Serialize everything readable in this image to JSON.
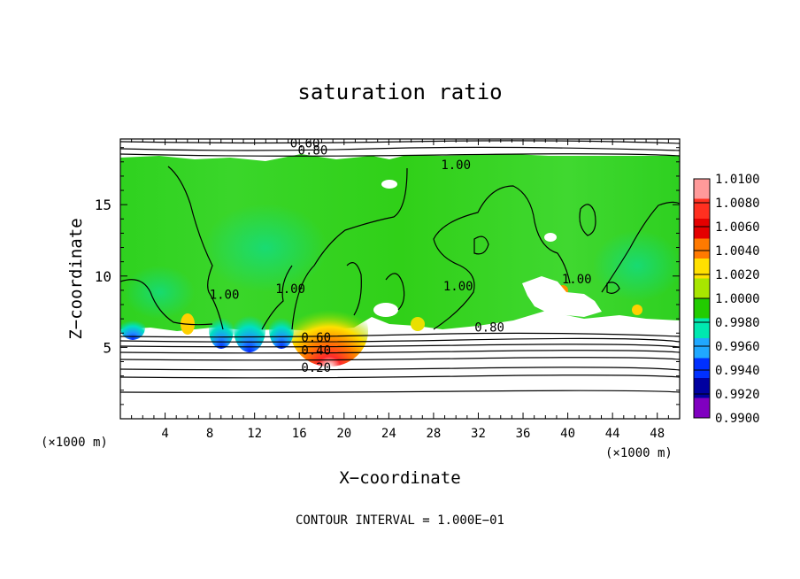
{
  "chart_data": {
    "type": "heatmap",
    "title": "saturation ratio",
    "xlabel": "X−coordinate",
    "ylabel": "Z−coordinate",
    "x_unit_left": "(×1000 m)",
    "x_unit_right": "(×1000 m)",
    "xlim": [
      0,
      50
    ],
    "ylim": [
      0,
      19.6
    ],
    "x_ticks": [
      4,
      8,
      12,
      16,
      20,
      24,
      28,
      32,
      36,
      40,
      44,
      48
    ],
    "y_ticks": [
      5,
      10,
      15
    ],
    "footer": "CONTOUR INTERVAL = 1.000E−01",
    "colorbar": {
      "range": [
        0.99,
        1.01
      ],
      "levels": [
        "1.0100",
        "1.0080",
        "1.0060",
        "1.0040",
        "1.0020",
        "1.0000",
        "0.9980",
        "0.9960",
        "0.9940",
        "0.9920",
        "0.9900"
      ],
      "colors": [
        "#ff9a9a",
        "#ff3020",
        "#e40000",
        "#ff7a00",
        "#ffe000",
        "#a8e600",
        "#22cc00",
        "#00e8b0",
        "#20a8ff",
        "#0030ff",
        "#0000a0",
        "#8000c0"
      ]
    },
    "contour_labels": [
      {
        "text": "0.60",
        "x": 16.5,
        "y": 19.0
      },
      {
        "text": "0.80",
        "x": 17.2,
        "y": 18.5
      },
      {
        "text": "1.00",
        "x": 30.0,
        "y": 17.5
      },
      {
        "text": "1.00",
        "x": 9.3,
        "y": 8.4
      },
      {
        "text": "1.00",
        "x": 15.2,
        "y": 8.8
      },
      {
        "text": "1.00",
        "x": 30.2,
        "y": 9.0
      },
      {
        "text": "1.00",
        "x": 40.8,
        "y": 9.5
      },
      {
        "text": "0.80",
        "x": 33.0,
        "y": 6.1
      },
      {
        "text": "0.60",
        "x": 17.5,
        "y": 5.4
      },
      {
        "text": "0.40",
        "x": 17.5,
        "y": 4.5
      },
      {
        "text": "0.20",
        "x": 17.5,
        "y": 3.3
      }
    ]
  }
}
